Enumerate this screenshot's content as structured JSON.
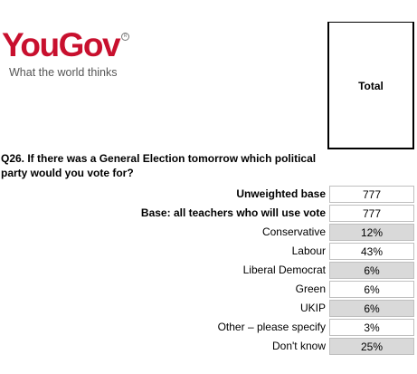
{
  "logo": {
    "brand": "YouGov",
    "tagline": "What the world thinks"
  },
  "header": {
    "total_label": "Total"
  },
  "question": {
    "text": "Q26. If there was a General Election tomorrow which political party would you vote for?"
  },
  "rows": [
    {
      "label": "Unweighted base",
      "value": "777"
    },
    {
      "label": "Base: all teachers who will use vote",
      "value": "777"
    },
    {
      "label": "Conservative",
      "value": "12%"
    },
    {
      "label": "Labour",
      "value": "43%"
    },
    {
      "label": "Liberal Democrat",
      "value": "6%"
    },
    {
      "label": "Green",
      "value": "6%"
    },
    {
      "label": "UKIP",
      "value": "6%"
    },
    {
      "label": "Other – please specify",
      "value": "3%"
    },
    {
      "label": "Don't know",
      "value": "25%"
    }
  ],
  "colors": {
    "brand_red": "#c8102e",
    "cell_shade": "#d9d9d9"
  }
}
